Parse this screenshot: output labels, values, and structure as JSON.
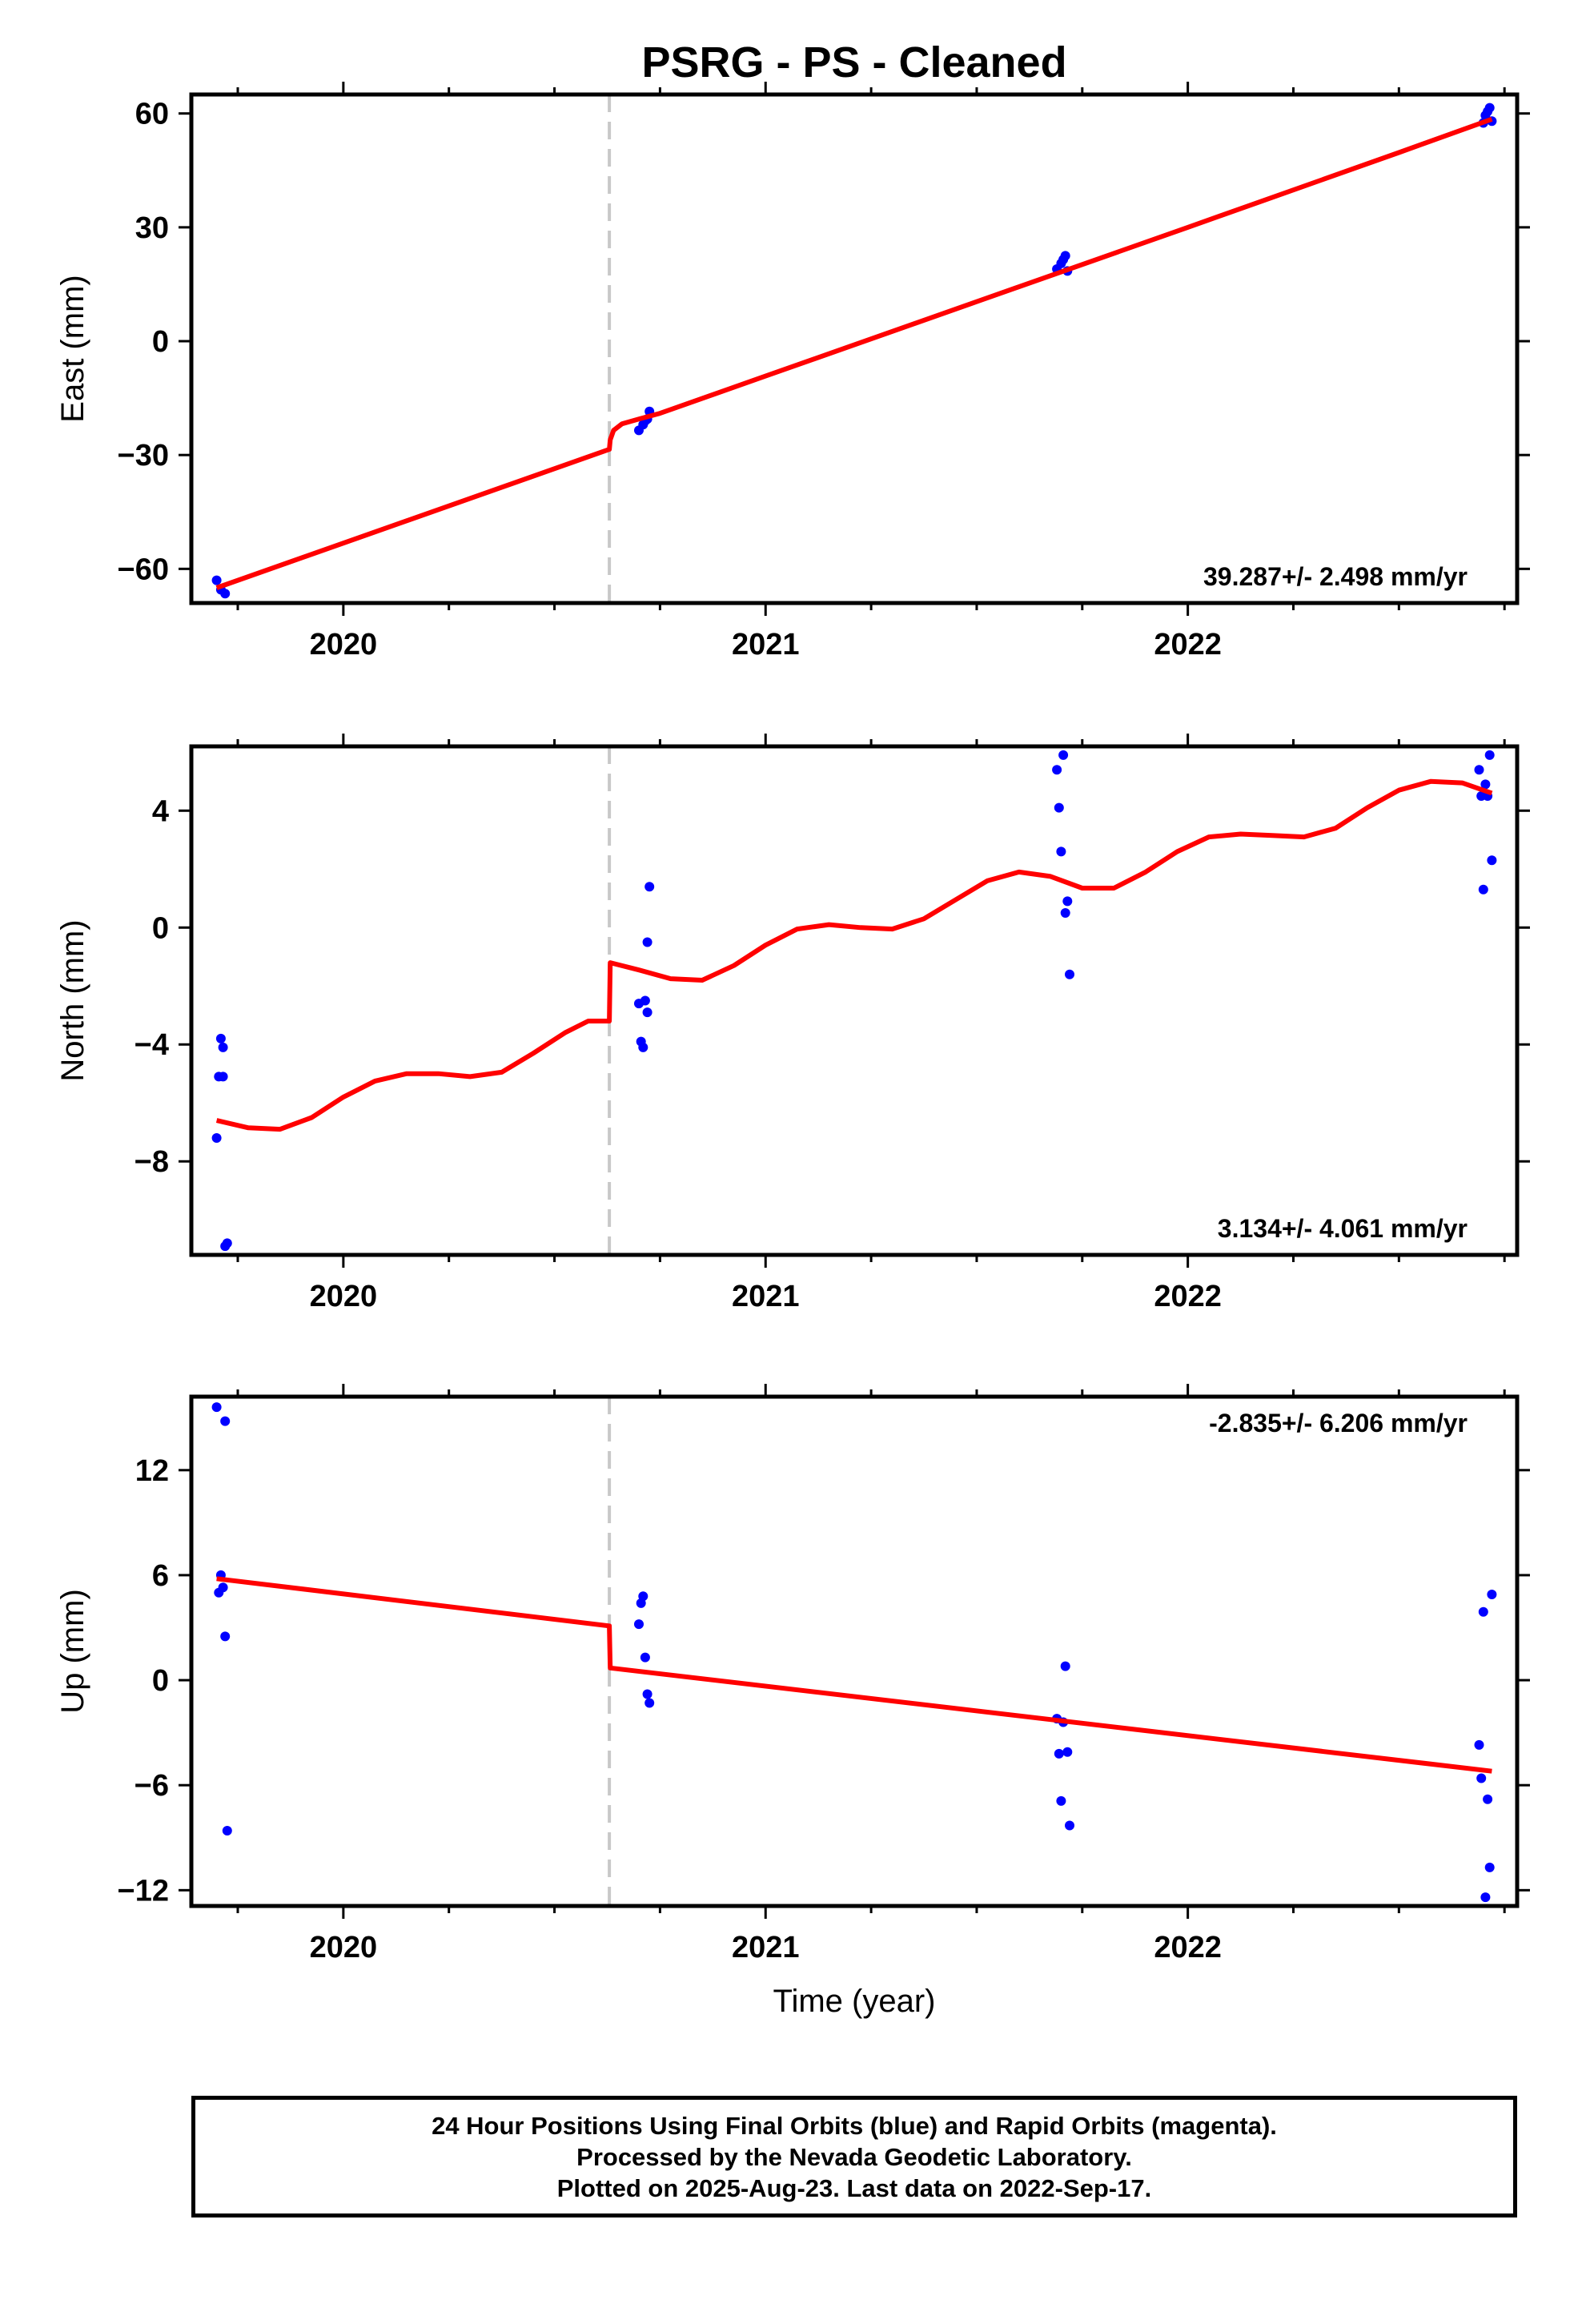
{
  "title": "PSRG  - PS - Cleaned",
  "xlabel": "Time (year)",
  "colors": {
    "points": "#0000ff",
    "model": "#ff0000",
    "offset_line": "#c8c8c8",
    "axis": "#000000"
  },
  "footer": {
    "line1": "24 Hour Positions Using Final Orbits (blue) and Rapid Orbits (magenta).",
    "line2": "Processed by the Nevada Geodetic Laboratory.",
    "line3": "Plotted on 2025-Aug-23. Last data on 2022-Sep-17."
  },
  "chart_data": [
    {
      "type": "scatter",
      "ylabel": "East (mm)",
      "xlim": [
        2019.64,
        2022.78
      ],
      "ylim": [
        -69,
        65
      ],
      "x_ticks": [
        2020,
        2021,
        2022
      ],
      "y_ticks": [
        -60,
        -30,
        0,
        30,
        60
      ],
      "grid": false,
      "rate_label": "39.287+/- 2.498 mm/yr",
      "rate_label_position": "bottom-right",
      "offset_epoch": 2020.63,
      "points": [
        [
          2019.7,
          -63.0
        ],
        [
          2019.71,
          -65.5
        ],
        [
          2019.72,
          -66.5
        ],
        [
          2020.7,
          -23.5
        ],
        [
          2020.71,
          -22.0
        ],
        [
          2020.715,
          -21.0
        ],
        [
          2020.72,
          -20.5
        ],
        [
          2020.725,
          -18.5
        ],
        [
          2021.69,
          19.0
        ],
        [
          2021.7,
          20.5
        ],
        [
          2021.705,
          21.5
        ],
        [
          2021.71,
          22.5
        ],
        [
          2021.715,
          18.5
        ],
        [
          2022.7,
          57.5
        ],
        [
          2022.705,
          59.5
        ],
        [
          2022.71,
          60.5
        ],
        [
          2022.715,
          61.5
        ],
        [
          2022.72,
          58.0
        ]
      ],
      "model": [
        [
          2019.7,
          -65.0
        ],
        [
          2020.63,
          -28.5
        ],
        [
          2020.632,
          -26.0
        ],
        [
          2020.64,
          -23.5
        ],
        [
          2020.66,
          -21.8
        ],
        [
          2020.7,
          -20.5
        ],
        [
          2020.75,
          -19.0
        ],
        [
          2021.0,
          -9.2
        ],
        [
          2021.5,
          10.4
        ],
        [
          2022.0,
          30.0
        ],
        [
          2022.5,
          49.7
        ],
        [
          2022.72,
          58.5
        ]
      ]
    },
    {
      "type": "scatter",
      "ylabel": "North (mm)",
      "xlim": [
        2019.64,
        2022.78
      ],
      "ylim": [
        -11.2,
        6.2
      ],
      "x_ticks": [
        2020,
        2021,
        2022
      ],
      "y_ticks": [
        -8,
        -4,
        0,
        4
      ],
      "grid": false,
      "rate_label": "3.134+/- 4.061 mm/yr",
      "rate_label_position": "bottom-right",
      "offset_epoch": 2020.63,
      "points": [
        [
          2019.7,
          -7.2
        ],
        [
          2019.705,
          -5.1
        ],
        [
          2019.71,
          -3.8
        ],
        [
          2019.715,
          -5.1
        ],
        [
          2019.715,
          -4.1
        ],
        [
          2019.72,
          -10.9
        ],
        [
          2019.725,
          -10.8
        ],
        [
          2020.7,
          -2.6
        ],
        [
          2020.705,
          -3.9
        ],
        [
          2020.71,
          -4.1
        ],
        [
          2020.715,
          -2.5
        ],
        [
          2020.72,
          -2.9
        ],
        [
          2020.72,
          -0.5
        ],
        [
          2020.725,
          1.4
        ],
        [
          2021.69,
          5.4
        ],
        [
          2021.695,
          4.1
        ],
        [
          2021.7,
          2.6
        ],
        [
          2021.705,
          5.9
        ],
        [
          2021.71,
          0.5
        ],
        [
          2021.715,
          0.9
        ],
        [
          2021.72,
          -1.6
        ],
        [
          2022.69,
          5.4
        ],
        [
          2022.695,
          4.5
        ],
        [
          2022.7,
          1.3
        ],
        [
          2022.705,
          4.9
        ],
        [
          2022.71,
          4.5
        ],
        [
          2022.715,
          5.9
        ],
        [
          2022.72,
          2.3
        ]
      ],
      "model": [
        [
          2019.7,
          -6.6
        ],
        [
          2019.775,
          -6.85
        ],
        [
          2019.85,
          -6.9
        ],
        [
          2019.925,
          -6.5
        ],
        [
          2020.0,
          -5.8
        ],
        [
          2020.075,
          -5.25
        ],
        [
          2020.15,
          -5.0
        ],
        [
          2020.225,
          -5.0
        ],
        [
          2020.3,
          -5.1
        ],
        [
          2020.375,
          -4.95
        ],
        [
          2020.45,
          -4.3
        ],
        [
          2020.525,
          -3.6
        ],
        [
          2020.58,
          -3.2
        ],
        [
          2020.63,
          -3.2
        ],
        [
          2020.632,
          -1.2
        ],
        [
          2020.7,
          -1.45
        ],
        [
          2020.775,
          -1.75
        ],
        [
          2020.85,
          -1.8
        ],
        [
          2020.925,
          -1.3
        ],
        [
          2021.0,
          -0.6
        ],
        [
          2021.075,
          -0.05
        ],
        [
          2021.15,
          0.1
        ],
        [
          2021.225,
          0.0
        ],
        [
          2021.3,
          -0.05
        ],
        [
          2021.375,
          0.3
        ],
        [
          2021.45,
          0.95
        ],
        [
          2021.525,
          1.6
        ],
        [
          2021.6,
          1.9
        ],
        [
          2021.675,
          1.75
        ],
        [
          2021.75,
          1.35
        ],
        [
          2021.825,
          1.35
        ],
        [
          2021.9,
          1.9
        ],
        [
          2021.975,
          2.6
        ],
        [
          2022.05,
          3.1
        ],
        [
          2022.125,
          3.2
        ],
        [
          2022.2,
          3.15
        ],
        [
          2022.275,
          3.1
        ],
        [
          2022.35,
          3.4
        ],
        [
          2022.425,
          4.1
        ],
        [
          2022.5,
          4.7
        ],
        [
          2022.575,
          5.0
        ],
        [
          2022.65,
          4.95
        ],
        [
          2022.72,
          4.6
        ]
      ]
    },
    {
      "type": "scatter",
      "ylabel": "Up (mm)",
      "xlim": [
        2019.64,
        2022.78
      ],
      "ylim": [
        -12.9,
        16.2
      ],
      "x_ticks": [
        2020,
        2021,
        2022
      ],
      "y_ticks": [
        -12,
        -6,
        0,
        6,
        12
      ],
      "grid": false,
      "rate_label": "-2.835+/- 6.206 mm/yr",
      "rate_label_position": "top-right",
      "offset_epoch": 2020.63,
      "points": [
        [
          2019.7,
          15.6
        ],
        [
          2019.705,
          5.0
        ],
        [
          2019.71,
          6.0
        ],
        [
          2019.715,
          5.3
        ],
        [
          2019.72,
          14.8
        ],
        [
          2019.72,
          2.5
        ],
        [
          2019.725,
          -8.6
        ],
        [
          2020.7,
          3.2
        ],
        [
          2020.705,
          4.4
        ],
        [
          2020.71,
          4.8
        ],
        [
          2020.715,
          1.3
        ],
        [
          2020.72,
          -0.8
        ],
        [
          2020.725,
          -1.3
        ],
        [
          2021.69,
          -2.2
        ],
        [
          2021.695,
          -4.2
        ],
        [
          2021.7,
          -6.9
        ],
        [
          2021.705,
          -2.4
        ],
        [
          2021.71,
          0.8
        ],
        [
          2021.715,
          -4.1
        ],
        [
          2021.72,
          -8.3
        ],
        [
          2022.69,
          -3.7
        ],
        [
          2022.695,
          -5.6
        ],
        [
          2022.7,
          3.9
        ],
        [
          2022.705,
          -12.4
        ],
        [
          2022.71,
          -6.8
        ],
        [
          2022.715,
          -10.7
        ],
        [
          2022.72,
          4.9
        ]
      ],
      "model": [
        [
          2019.7,
          5.8
        ],
        [
          2020.63,
          3.1
        ],
        [
          2020.632,
          0.7
        ],
        [
          2022.72,
          -5.2
        ]
      ]
    }
  ]
}
